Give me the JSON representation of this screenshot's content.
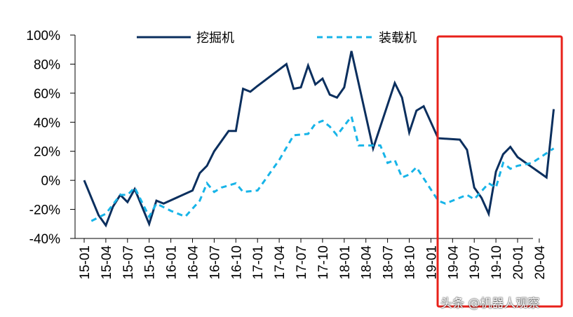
{
  "chart_data": {
    "type": "line",
    "title": "",
    "xlabel": "",
    "ylabel": "",
    "ylim": [
      -40,
      100
    ],
    "yticks": [
      "100%",
      "80%",
      "60%",
      "40%",
      "20%",
      "0%",
      "-20%",
      "-40%"
    ],
    "xticks": [
      "15-01",
      "15-04",
      "15-07",
      "15-10",
      "16-01",
      "16-04",
      "16-07",
      "16-10",
      "17-01",
      "17-04",
      "17-07",
      "17-10",
      "18-01",
      "18-04",
      "18-07",
      "18-10",
      "19-01",
      "19-04",
      "19-07",
      "19-10",
      "20-01",
      "20-04"
    ],
    "legend_position": "top",
    "highlight": {
      "from": "19-04",
      "to": "20-04",
      "color": "#e8201a"
    },
    "series": [
      {
        "name": "挖掘机",
        "style": "solid",
        "color": "#0b2f5e",
        "points": [
          [
            "15-01",
            0
          ],
          [
            "15-03",
            -24
          ],
          [
            "15-04",
            -31
          ],
          [
            "15-05",
            -18
          ],
          [
            "15-06",
            -10
          ],
          [
            "15-07",
            -15
          ],
          [
            "15-08",
            -6
          ],
          [
            "15-10",
            -30
          ],
          [
            "15-11",
            -14
          ],
          [
            "15-12",
            -16
          ],
          [
            "16-04",
            -7
          ],
          [
            "16-05",
            5
          ],
          [
            "16-06",
            10
          ],
          [
            "16-07",
            20
          ],
          [
            "16-09",
            34
          ],
          [
            "16-10",
            34
          ],
          [
            "16-11",
            63
          ],
          [
            "16-12",
            61
          ],
          [
            "17-01",
            65
          ],
          [
            "17-05",
            80
          ],
          [
            "17-06",
            63
          ],
          [
            "17-07",
            64
          ],
          [
            "17-08",
            79
          ],
          [
            "17-09",
            66
          ],
          [
            "17-10",
            70
          ],
          [
            "17-11",
            59
          ],
          [
            "17-12",
            57
          ],
          [
            "18-01",
            64
          ],
          [
            "18-02",
            89
          ],
          [
            "18-05",
            22
          ],
          [
            "18-08",
            67
          ],
          [
            "18-09",
            57
          ],
          [
            "18-10",
            33
          ],
          [
            "18-11",
            48
          ],
          [
            "18-12",
            51
          ],
          [
            "19-02",
            29
          ],
          [
            "19-05",
            28
          ],
          [
            "19-06",
            21
          ],
          [
            "19-07",
            -5
          ],
          [
            "19-08",
            -12
          ],
          [
            "19-09",
            -23
          ],
          [
            "19-10",
            6
          ],
          [
            "19-11",
            18
          ],
          [
            "19-12",
            23
          ],
          [
            "20-01",
            16
          ],
          [
            "20-05",
            2
          ],
          [
            "20-06",
            49
          ]
        ]
      },
      {
        "name": "装载机",
        "style": "dashed",
        "color": "#17b4e8",
        "points": [
          [
            "15-02",
            -28
          ],
          [
            "15-04",
            -23
          ],
          [
            "15-06",
            -10
          ],
          [
            "15-07",
            -10
          ],
          [
            "15-08",
            -5
          ],
          [
            "15-10",
            -25
          ],
          [
            "15-11",
            -16
          ],
          [
            "16-01",
            -21
          ],
          [
            "16-03",
            -25
          ],
          [
            "16-05",
            -14
          ],
          [
            "16-06",
            -2
          ],
          [
            "16-07",
            -8
          ],
          [
            "16-08",
            -5
          ],
          [
            "16-10",
            -2
          ],
          [
            "16-11",
            -8
          ],
          [
            "17-01",
            -7
          ],
          [
            "17-04",
            14
          ],
          [
            "17-06",
            31
          ],
          [
            "17-08",
            32
          ],
          [
            "17-09",
            39
          ],
          [
            "17-10",
            41
          ],
          [
            "17-11",
            37
          ],
          [
            "17-12",
            31
          ],
          [
            "18-02",
            44
          ],
          [
            "18-03",
            24
          ],
          [
            "18-06",
            24
          ],
          [
            "18-07",
            12
          ],
          [
            "18-08",
            14
          ],
          [
            "18-09",
            2
          ],
          [
            "18-10",
            4
          ],
          [
            "18-11",
            9
          ],
          [
            "19-02",
            -14
          ],
          [
            "19-03",
            -16
          ],
          [
            "19-04",
            -14
          ],
          [
            "19-05",
            -12
          ],
          [
            "19-06",
            -10
          ],
          [
            "19-07",
            -13
          ],
          [
            "19-09",
            -2
          ],
          [
            "19-10",
            -5
          ],
          [
            "19-11",
            12
          ],
          [
            "19-12",
            8
          ],
          [
            "20-01",
            10
          ],
          [
            "20-03",
            12
          ],
          [
            "20-06",
            22
          ]
        ]
      }
    ]
  },
  "watermark": "头条 @机器人观察"
}
